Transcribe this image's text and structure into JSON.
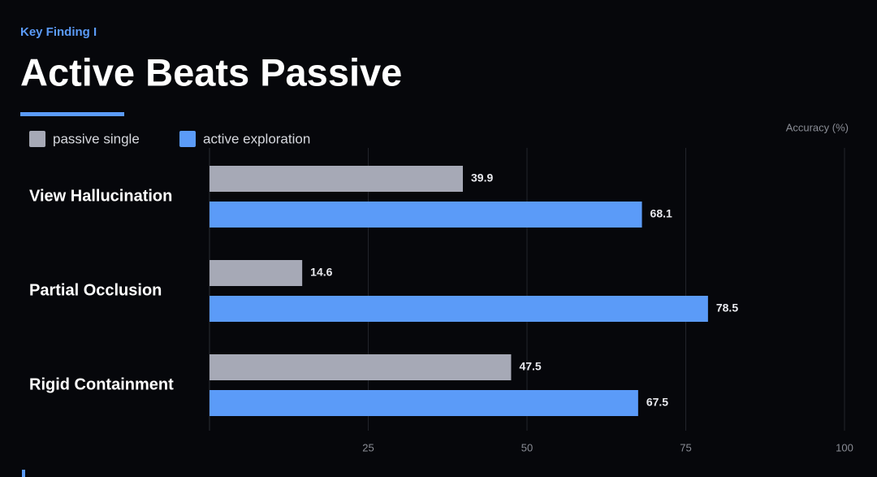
{
  "chart_data": {
    "type": "hbar",
    "kicker": "Key Finding I",
    "title": "Active Beats Passive",
    "x_label": "Accuracy (%)",
    "categories": [
      "View Hallucination",
      "Partial Occlusion",
      "Rigid Containment"
    ],
    "series": [
      {
        "name": "passive single",
        "color": "#a6a9b6",
        "values": [
          39.9,
          14.6,
          47.5
        ]
      },
      {
        "name": "active exploration",
        "color": "#5b9bf8",
        "values": [
          68.1,
          78.5,
          67.5
        ]
      }
    ],
    "xlim": [
      0,
      100
    ],
    "xticks": [
      25,
      50,
      75,
      100
    ],
    "grid": true
  }
}
